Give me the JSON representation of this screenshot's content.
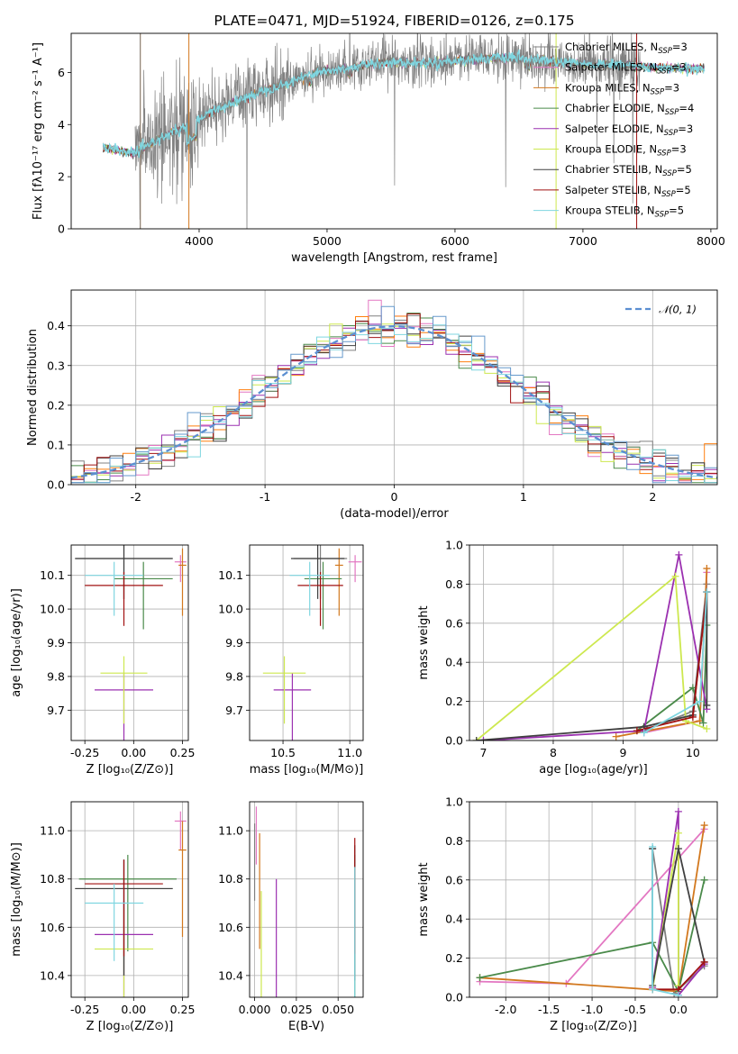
{
  "colors": {
    "C0": "#1f77b4",
    "C1": "#ff7f0e",
    "C2": "#2ca02c",
    "C3": "#d62728",
    "C4": "#9467bd"
  },
  "chart_data": [
    {
      "type": "line",
      "title": "PLATE=0471, MJD=51924, FIBERID=0126, z=0.175",
      "xlabel": "wavelength [Angstrom, rest frame]",
      "ylabel": "Flux [fλ10⁻¹⁷ erg cm⁻² s⁻¹ A⁻¹]",
      "xlim": [
        3000,
        8050
      ],
      "ylim": [
        0,
        7.5
      ],
      "xticks": [
        "4000",
        "5000",
        "6000",
        "7000",
        "8000"
      ],
      "yticks": [
        "0",
        "2",
        "4",
        "6"
      ],
      "legend_position": "right",
      "legend": [
        {
          "name": "Chabrier MILES, N",
          "sub": "SSP",
          "suffix": "=3",
          "color": "#808080"
        },
        {
          "name": "Salpeter MILES, N",
          "sub": "SSP",
          "suffix": "=3",
          "color": "#e377c2"
        },
        {
          "name": "Kroupa MILES, N",
          "sub": "SSP",
          "suffix": "=3",
          "color": "#d2781e"
        },
        {
          "name": "Chabrier ELODIE, N",
          "sub": "SSP",
          "suffix": "=4",
          "color": "#4a8a4a"
        },
        {
          "name": "Salpeter ELODIE, N",
          "sub": "SSP",
          "suffix": "=3",
          "color": "#9b30b0"
        },
        {
          "name": "Kroupa ELODIE, N",
          "sub": "SSP",
          "suffix": "=3",
          "color": "#cde84f"
        },
        {
          "name": "Chabrier STELIB, N",
          "sub": "SSP",
          "suffix": "=5",
          "color": "#404040"
        },
        {
          "name": "Salpeter STELIB, N",
          "sub": "SSP",
          "suffix": "=5",
          "color": "#a01010"
        },
        {
          "name": "Kroupa STELIB, N",
          "sub": "SSP",
          "suffix": "=5",
          "color": "#7fd6e0"
        }
      ],
      "continuum": {
        "x": [
          3250,
          3500,
          3700,
          3900,
          4100,
          4300,
          4500,
          4700,
          4900,
          5100,
          5300,
          5500,
          5700,
          5900,
          6100,
          6300,
          6500,
          6700,
          6900,
          7100,
          7300,
          7500,
          7700,
          7900
        ],
        "y": [
          3.1,
          2.9,
          3.5,
          3.9,
          4.5,
          4.9,
          5.3,
          5.6,
          6.0,
          6.1,
          6.3,
          6.4,
          6.35,
          6.4,
          6.5,
          6.55,
          6.55,
          6.45,
          6.35,
          6.3,
          6.3,
          6.2,
          6.15,
          6.15
        ]
      },
      "model_x_range": [
        3250,
        7950
      ],
      "data_x_range": [
        3500,
        7450
      ]
    },
    {
      "type": "histogram",
      "xlabel": "(data-model)/error",
      "ylabel": "Normed distribution",
      "xlim": [
        -2.5,
        2.5
      ],
      "ylim": [
        0,
        0.49
      ],
      "xticks": [
        "-2",
        "-1",
        "0",
        "1",
        "2"
      ],
      "yticks": [
        "0.0",
        "0.1",
        "0.2",
        "0.3",
        "0.4"
      ],
      "legend": "𝒩(0, 1)",
      "legend_position": "upper right",
      "bin_width": 0.1
    },
    {
      "type": "scatter",
      "xlabel": "Z [log₁₀(Z/Z⊙)]",
      "ylabel": "age  [log₁₀(age/yr)]",
      "xlim": [
        -0.32,
        0.28
      ],
      "ylim": [
        9.61,
        10.19
      ],
      "xticks": [
        "-0.25",
        "0.00",
        "0.25"
      ],
      "yticks": [
        "9.7",
        "9.8",
        "9.9",
        "10.0",
        "10.1"
      ],
      "points": [
        {
          "x": -0.05,
          "y": 10.15,
          "xerr": 0.25,
          "yerr": 0.04,
          "color": "#808080"
        },
        {
          "x": 0.24,
          "y": 10.14,
          "xerr": 0.03,
          "yerr": 0.02,
          "color": "#e377c2"
        },
        {
          "x": 0.25,
          "y": 10.13,
          "xerr": 0.02,
          "yerr": 0.05,
          "color": "#d2781e"
        },
        {
          "x": 0.05,
          "y": 10.09,
          "xerr": 0.15,
          "yerr": 0.05,
          "color": "#4a8a4a"
        },
        {
          "x": -0.05,
          "y": 9.76,
          "xerr": 0.15,
          "yerr": 0.05,
          "color": "#9b30b0"
        },
        {
          "x": -0.05,
          "y": 9.81,
          "xerr": 0.12,
          "yerr": 0.05,
          "color": "#cde84f"
        },
        {
          "x": -0.05,
          "y": 10.15,
          "xerr": 0.25,
          "yerr": 0.04,
          "color": "#404040"
        },
        {
          "x": -0.05,
          "y": 10.07,
          "xerr": 0.2,
          "yerr": 0.04,
          "color": "#a01010"
        },
        {
          "x": -0.1,
          "y": 10.1,
          "xerr": 0.15,
          "yerr": 0.04,
          "color": "#7fd6e0"
        }
      ]
    },
    {
      "type": "scatter",
      "xlabel": "mass [log₁₀(M/M⊙)]",
      "xlim": [
        10.25,
        11.1
      ],
      "ylim": [
        9.61,
        10.19
      ],
      "xticks": [
        "10.5",
        "11.0"
      ],
      "yticks": [
        "9.7",
        "9.8",
        "9.9",
        "10.0",
        "10.1"
      ],
      "points": [
        {
          "x": 10.78,
          "y": 10.15,
          "xerr": 0.2,
          "yerr": 0.04,
          "color": "#808080"
        },
        {
          "x": 11.04,
          "y": 10.14,
          "xerr": 0.05,
          "yerr": 0.02,
          "color": "#e377c2"
        },
        {
          "x": 10.92,
          "y": 10.13,
          "xerr": 0.03,
          "yerr": 0.05,
          "color": "#d2781e"
        },
        {
          "x": 10.8,
          "y": 10.09,
          "xerr": 0.14,
          "yerr": 0.05,
          "color": "#4a8a4a"
        },
        {
          "x": 10.57,
          "y": 9.76,
          "xerr": 0.14,
          "yerr": 0.05,
          "color": "#9b30b0"
        },
        {
          "x": 10.51,
          "y": 9.81,
          "xerr": 0.16,
          "yerr": 0.05,
          "color": "#cde84f"
        },
        {
          "x": 10.76,
          "y": 10.15,
          "xerr": 0.2,
          "yerr": 0.04,
          "color": "#404040"
        },
        {
          "x": 10.78,
          "y": 10.07,
          "xerr": 0.17,
          "yerr": 0.04,
          "color": "#a01010"
        },
        {
          "x": 10.7,
          "y": 10.1,
          "xerr": 0.15,
          "yerr": 0.04,
          "color": "#7fd6e0"
        }
      ]
    },
    {
      "type": "line",
      "xlabel": "age  [log₁₀(age/yr)]",
      "ylabel": "mass weight",
      "xlim": [
        6.8,
        10.35
      ],
      "ylim": [
        0,
        1.0
      ],
      "xticks": [
        "7",
        "8",
        "9",
        "10"
      ],
      "yticks": [
        "0.0",
        "0.2",
        "0.4",
        "0.6",
        "0.8",
        "1.0"
      ],
      "series": [
        {
          "color": "#808080",
          "x": [
            9.3,
            10.0,
            10.2
          ],
          "y": [
            0.05,
            0.15,
            0.8
          ]
        },
        {
          "color": "#e377c2",
          "x": [
            9.3,
            10.1,
            10.2
          ],
          "y": [
            0.04,
            0.1,
            0.86
          ]
        },
        {
          "color": "#d2781e",
          "x": [
            8.9,
            10.1,
            10.2
          ],
          "y": [
            0.02,
            0.1,
            0.88
          ]
        },
        {
          "color": "#4a8a4a",
          "x": [
            9.2,
            10.0,
            10.15,
            10.2
          ],
          "y": [
            0.05,
            0.27,
            0.09,
            0.59
          ]
        },
        {
          "color": "#9b30b0",
          "x": [
            7.0,
            9.3,
            9.8,
            10.2
          ],
          "y": [
            0.0,
            0.05,
            0.95,
            0.16
          ]
        },
        {
          "color": "#cde84f",
          "x": [
            6.9,
            9.75,
            9.9,
            10.2
          ],
          "y": [
            0.0,
            0.84,
            0.1,
            0.06
          ]
        },
        {
          "color": "#404040",
          "x": [
            6.9,
            9.3,
            10.0,
            10.2,
            10.2
          ],
          "y": [
            0.0,
            0.07,
            0.13,
            0.76,
            0.18
          ]
        },
        {
          "color": "#a01010",
          "x": [
            9.2,
            10.0,
            10.2
          ],
          "y": [
            0.05,
            0.12,
            0.76
          ]
        },
        {
          "color": "#7fd6e0",
          "x": [
            9.3,
            10.1,
            10.2
          ],
          "y": [
            0.04,
            0.2,
            0.76
          ]
        }
      ]
    },
    {
      "type": "scatter",
      "xlabel": "Z [log₁₀(Z/Z⊙)]",
      "ylabel": "mass [log₁₀(M/M⊙)]",
      "xlim": [
        -0.32,
        0.28
      ],
      "ylim": [
        10.31,
        11.12
      ],
      "xticks": [
        "-0.25",
        "0.00",
        "0.25"
      ],
      "yticks": [
        "10.4",
        "10.6",
        "10.8",
        "11.0"
      ],
      "points": [
        {
          "x": -0.05,
          "y": 10.76,
          "xerr": 0.25,
          "yerr": 0.12,
          "color": "#808080"
        },
        {
          "x": 0.24,
          "y": 11.04,
          "xerr": 0.03,
          "yerr": 0.04,
          "color": "#e377c2"
        },
        {
          "x": 0.25,
          "y": 10.92,
          "xerr": 0.02,
          "yerr": 0.12,
          "color": "#d2781e"
        },
        {
          "x": -0.03,
          "y": 10.8,
          "xerr": 0.25,
          "yerr": 0.1,
          "color": "#4a8a4a"
        },
        {
          "x": -0.05,
          "y": 10.57,
          "xerr": 0.15,
          "yerr": 0.14,
          "color": "#9b30b0"
        },
        {
          "x": -0.05,
          "y": 10.51,
          "xerr": 0.15,
          "yerr": 0.17,
          "color": "#cde84f"
        },
        {
          "x": -0.05,
          "y": 10.76,
          "xerr": 0.25,
          "yerr": 0.12,
          "color": "#404040"
        },
        {
          "x": -0.05,
          "y": 10.78,
          "xerr": 0.2,
          "yerr": 0.1,
          "color": "#a01010"
        },
        {
          "x": -0.1,
          "y": 10.7,
          "xerr": 0.15,
          "yerr": 0.08,
          "color": "#7fd6e0"
        }
      ]
    },
    {
      "type": "scatter",
      "xlabel": "E(B-V)",
      "xlim": [
        -0.003,
        0.065
      ],
      "ylim": [
        10.31,
        11.12
      ],
      "xticks": [
        "0.000",
        "0.025",
        "0.050"
      ],
      "yticks": [
        "10.4",
        "10.6",
        "10.8",
        "11.0"
      ],
      "points": [
        {
          "x": 0.0,
          "y": 10.95,
          "xerr": 0,
          "yerr": 0.08,
          "color": "#808080"
        },
        {
          "x": 0.001,
          "y": 11.04,
          "xerr": 0,
          "yerr": 0.06,
          "color": "#e377c2"
        },
        {
          "x": 0.003,
          "y": 10.87,
          "xerr": 0,
          "yerr": 0.12,
          "color": "#d2781e"
        },
        {
          "x": 0.06,
          "y": 10.75,
          "xerr": 0,
          "yerr": 0.15,
          "color": "#4a8a4a"
        },
        {
          "x": 0.013,
          "y": 10.62,
          "xerr": 0,
          "yerr": 0.18,
          "color": "#9b30b0"
        },
        {
          "x": 0.004,
          "y": 10.55,
          "xerr": 0,
          "yerr": 0.2,
          "color": "#cde84f"
        },
        {
          "x": 0.06,
          "y": 10.8,
          "xerr": 0,
          "yerr": 0.14,
          "color": "#404040"
        },
        {
          "x": 0.06,
          "y": 10.85,
          "xerr": 0,
          "yerr": 0.12,
          "color": "#a01010"
        },
        {
          "x": 0.06,
          "y": 10.7,
          "xerr": 0,
          "yerr": 0.15,
          "color": "#7fd6e0"
        }
      ]
    },
    {
      "type": "line",
      "xlabel": "Z [log₁₀(Z/Z⊙)]",
      "ylabel": "mass weight",
      "xlim": [
        -2.42,
        0.45
      ],
      "ylim": [
        0,
        1.0
      ],
      "xticks": [
        "-2.0",
        "-1.5",
        "-1.0",
        "-0.5",
        "0.0"
      ],
      "yticks": [
        "0.0",
        "0.2",
        "0.4",
        "0.6",
        "0.8",
        "1.0"
      ],
      "series": [
        {
          "color": "#808080",
          "x": [
            -0.3,
            -0.05,
            0.3
          ],
          "y": [
            0.76,
            0.02,
            0.16
          ]
        },
        {
          "color": "#e377c2",
          "x": [
            -2.3,
            -1.3,
            0.3
          ],
          "y": [
            0.08,
            0.07,
            0.86
          ]
        },
        {
          "color": "#d2781e",
          "x": [
            -2.3,
            0.0,
            0.3
          ],
          "y": [
            0.1,
            0.03,
            0.88
          ]
        },
        {
          "color": "#4a8a4a",
          "x": [
            -2.3,
            -0.3,
            0.0,
            0.3
          ],
          "y": [
            0.1,
            0.28,
            0.03,
            0.6
          ]
        },
        {
          "color": "#9b30b0",
          "x": [
            -0.3,
            0.0,
            0.0,
            0.3
          ],
          "y": [
            0.05,
            0.95,
            0.01,
            0.17
          ]
        },
        {
          "color": "#cde84f",
          "x": [
            -0.3,
            0.0,
            0.0
          ],
          "y": [
            0.04,
            0.84,
            0.06
          ]
        },
        {
          "color": "#404040",
          "x": [
            -0.3,
            -0.3,
            0.0,
            0.3
          ],
          "y": [
            0.76,
            0.06,
            0.76,
            0.18
          ]
        },
        {
          "color": "#a01010",
          "x": [
            -0.3,
            0.0,
            0.3
          ],
          "y": [
            0.04,
            0.04,
            0.18
          ]
        },
        {
          "color": "#7fd6e0",
          "x": [
            -0.3,
            -0.3,
            0.0
          ],
          "y": [
            0.77,
            0.04,
            0.01
          ]
        }
      ]
    }
  ]
}
